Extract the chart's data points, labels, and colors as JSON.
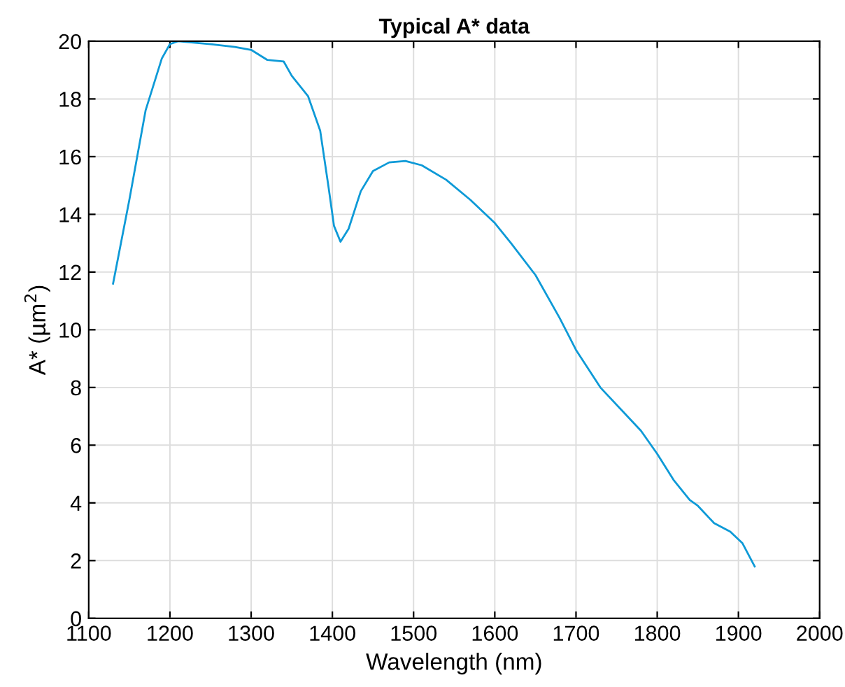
{
  "chart_data": {
    "type": "line",
    "title": "Typical A* data",
    "xlabel": "Wavelength (nm)",
    "ylabel": "A* (µm$^{2}$)",
    "x": [
      1130,
      1150,
      1170,
      1190,
      1200,
      1210,
      1250,
      1280,
      1300,
      1320,
      1340,
      1350,
      1370,
      1385,
      1395,
      1402,
      1410,
      1420,
      1435,
      1450,
      1470,
      1490,
      1510,
      1540,
      1570,
      1600,
      1620,
      1650,
      1680,
      1700,
      1730,
      1760,
      1780,
      1800,
      1820,
      1840,
      1850,
      1870,
      1890,
      1905,
      1920
    ],
    "series": [
      {
        "color": "#0e9ad7",
        "values": [
          11.6,
          14.5,
          17.6,
          19.4,
          19.9,
          20.0,
          19.9,
          19.8,
          19.7,
          19.35,
          19.3,
          18.8,
          18.1,
          16.9,
          15.0,
          13.6,
          13.05,
          13.5,
          14.8,
          15.5,
          15.8,
          15.85,
          15.7,
          15.2,
          14.5,
          13.7,
          13.0,
          11.9,
          10.4,
          9.3,
          8.0,
          7.1,
          6.5,
          5.7,
          4.8,
          4.1,
          3.9,
          3.3,
          3.0,
          2.6,
          1.8
        ]
      }
    ],
    "xlim": [
      1100,
      2000
    ],
    "xticks": [
      1100,
      1200,
      1300,
      1400,
      1500,
      1600,
      1700,
      1800,
      1900,
      2000
    ],
    "ylim": [
      0,
      20
    ],
    "yticks": [
      0,
      2,
      4,
      6,
      8,
      10,
      12,
      14,
      16,
      18,
      20
    ],
    "grid": true,
    "legend": false,
    "marker": "none",
    "line_style": "solid"
  }
}
